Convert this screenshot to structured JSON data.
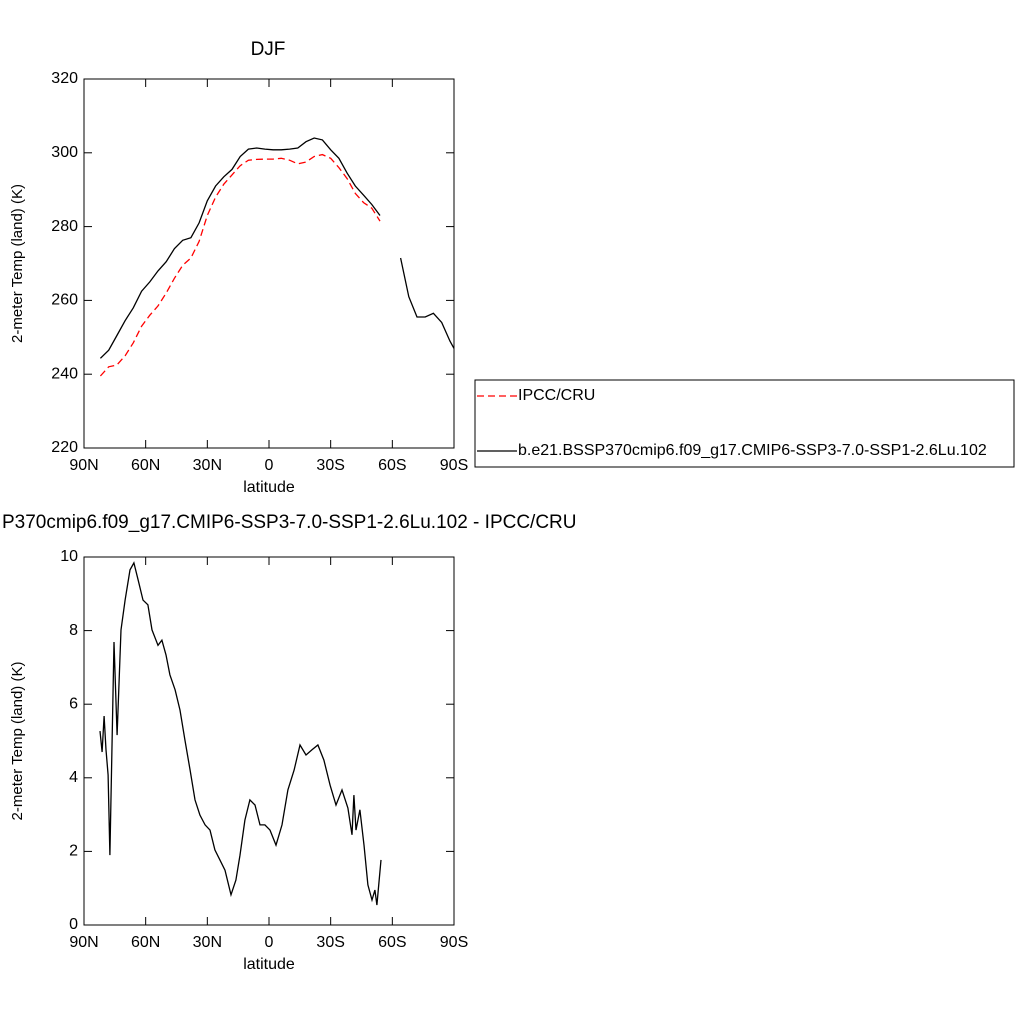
{
  "chart_data": [
    {
      "type": "line",
      "title": "DJF",
      "xlabel": "latitude",
      "ylabel": "2-meter Temp (land) (K)",
      "x": [
        82,
        78,
        74,
        70,
        66,
        62,
        58,
        54,
        50,
        46,
        42,
        38,
        34,
        30,
        26,
        22,
        18,
        14,
        10,
        6,
        2,
        -2,
        -6,
        -10,
        -14,
        -18,
        -22,
        -26,
        -30,
        -34,
        -38,
        -42,
        -46,
        -50,
        -54,
        -58,
        -64,
        -68,
        -72,
        -76,
        -80,
        -84,
        -88,
        -90
      ],
      "series": [
        {
          "name": "IPCC/CRU",
          "color": "#ff0000",
          "line_style": "dashed",
          "values": [
            239.5,
            242,
            242.5,
            245,
            248.5,
            253,
            256,
            258.5,
            262,
            266,
            269.5,
            271.5,
            276,
            283,
            288,
            291.5,
            294,
            296.5,
            298,
            298.2,
            298.3,
            298.3,
            298.5,
            298,
            297,
            297.5,
            299,
            299.5,
            298.5,
            296,
            293,
            289,
            286.5,
            285,
            281.5,
            null,
            null,
            null,
            null,
            null,
            null,
            null,
            null,
            null
          ]
        },
        {
          "name": "b.e21.BSSP370cmip6.f09_g17.CMIP6-SSP3-7.0-SSP1-2.6Lu.102",
          "color": "#000000",
          "line_style": "solid",
          "values": [
            244.3,
            246.5,
            250.5,
            254.5,
            258,
            262.5,
            265,
            268,
            270.5,
            274,
            276.3,
            277,
            281,
            287,
            291,
            293.5,
            295.5,
            299,
            301,
            301.3,
            301,
            300.8,
            300.8,
            301,
            301.3,
            303,
            304,
            303.5,
            300.8,
            298.5,
            294.5,
            291,
            288.5,
            286,
            283,
            null,
            271.5,
            261,
            255.5,
            255.5,
            256.5,
            254,
            249,
            247
          ]
        }
      ],
      "xlim": [
        90,
        -90
      ],
      "xticks": [
        {
          "value": 90,
          "label": "90N"
        },
        {
          "value": 60,
          "label": "60N"
        },
        {
          "value": 30,
          "label": "30N"
        },
        0,
        {
          "value": -30,
          "label": "30S"
        },
        {
          "value": -60,
          "label": "60S"
        },
        {
          "value": -90,
          "label": "90S"
        }
      ],
      "ylim": [
        220,
        320
      ],
      "yticks": [
        220,
        240,
        260,
        280,
        300,
        320
      ],
      "legend": "right"
    },
    {
      "type": "line",
      "title": "P370cmip6.f09_g17.CMIP6-SSP3-7.0-SSP1-2.6Lu.102 - IPCC/CRU",
      "xlabel": "latitude",
      "ylabel": "2-meter Temp (land) (K)",
      "x": [
        82.2,
        81.2,
        80.2,
        79.3,
        78.3,
        77.4,
        75.4,
        73.9,
        72,
        70,
        67.6,
        65.7,
        63.7,
        61.3,
        58.9,
        56.9,
        54,
        52.1,
        50.1,
        48.2,
        45.7,
        43.3,
        40.9,
        38.4,
        36,
        33.6,
        31.1,
        28.7,
        26.3,
        23.9,
        21.4,
        18.5,
        16.1,
        14.1,
        11.7,
        9.3,
        6.8,
        4.4,
        2,
        -0.5,
        -3.4,
        -6.3,
        -9.2,
        -12.2,
        -15.1,
        -18,
        -20.9,
        -23.8,
        -26.7,
        -29.7,
        -32.6,
        -35.5,
        -38.4,
        -40.4,
        -41.3,
        -42.3,
        -44.2,
        -46.2,
        -48.1,
        -50.1,
        -51.5,
        -52.5,
        -54.5
      ],
      "values": [
        5.27,
        4.7,
        5.68,
        4.76,
        4.08,
        1.9,
        7.69,
        5.16,
        8.02,
        8.83,
        9.65,
        9.84,
        9.38,
        8.83,
        8.7,
        8.02,
        7.6,
        7.74,
        7.34,
        6.8,
        6.39,
        5.84,
        5.03,
        4.21,
        3.4,
        2.99,
        2.72,
        2.58,
        2.04,
        1.77,
        1.49,
        0.82,
        1.22,
        1.9,
        2.85,
        3.4,
        3.26,
        2.72,
        2.72,
        2.58,
        2.17,
        2.72,
        3.67,
        4.21,
        4.89,
        4.62,
        4.76,
        4.89,
        4.48,
        3.8,
        3.26,
        3.67,
        3.18,
        2.45,
        3.53,
        2.58,
        3.13,
        2.17,
        1.09,
        0.68,
        0.95,
        0.54,
        1.77
      ],
      "color": "#000000",
      "xlim": [
        90,
        -90
      ],
      "xticks": [
        {
          "value": 90,
          "label": "90N"
        },
        {
          "value": 60,
          "label": "60N"
        },
        {
          "value": 30,
          "label": "30N"
        },
        0,
        {
          "value": -30,
          "label": "30S"
        },
        {
          "value": -60,
          "label": "60S"
        },
        {
          "value": -90,
          "label": "90S"
        }
      ],
      "ylim": [
        0,
        10
      ],
      "yticks": [
        0,
        2,
        4,
        6,
        8,
        10
      ]
    }
  ]
}
